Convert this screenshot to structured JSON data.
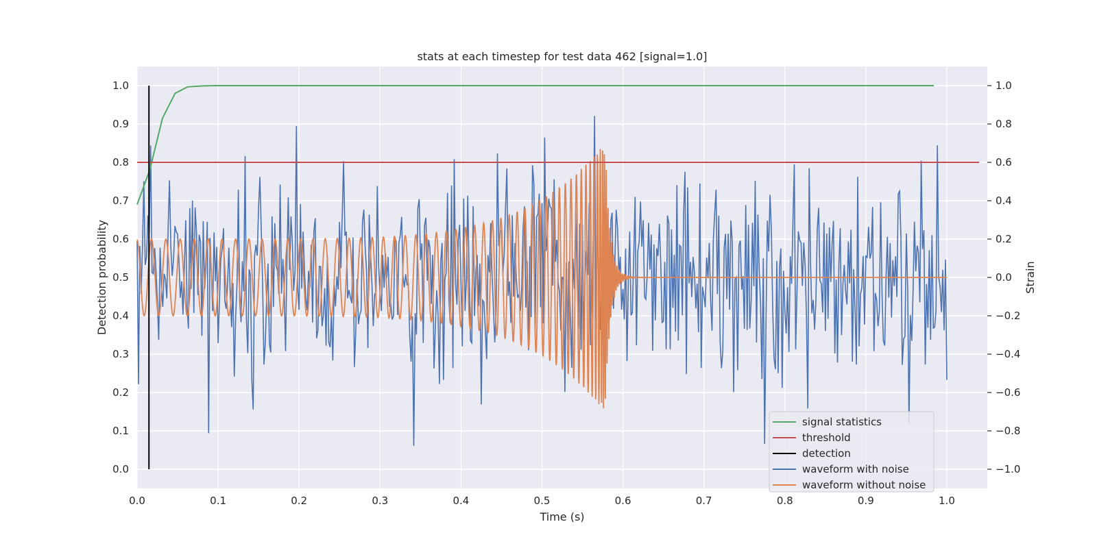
{
  "chart_data": {
    "type": "line",
    "title": "stats at each timestep for test data 462 [signal=1.0]",
    "xlabel": "Time (s)",
    "ylabel": "Detection probability",
    "y2label": "Strain",
    "xlim": [
      0.0,
      1.05
    ],
    "ylim": [
      -0.05,
      1.05
    ],
    "y2lim": [
      -1.1,
      1.1
    ],
    "xticks": [
      "0.0",
      "0.1",
      "0.2",
      "0.3",
      "0.4",
      "0.5",
      "0.6",
      "0.7",
      "0.8",
      "0.9",
      "1.0"
    ],
    "yticks": [
      "0.0",
      "0.1",
      "0.2",
      "0.3",
      "0.4",
      "0.5",
      "0.6",
      "0.7",
      "0.8",
      "0.9",
      "1.0"
    ],
    "y2ticks": [
      "−1.0",
      "−0.8",
      "−0.6",
      "−0.4",
      "−0.2",
      "0.0",
      "0.2",
      "0.4",
      "0.6",
      "0.8",
      "1.0"
    ],
    "grid": true,
    "legend_position": "lower-right",
    "colors": {
      "signal": "#55a868",
      "threshold": "#c44e52",
      "detection": "#000000",
      "noisy": "#4c72b0",
      "clean": "#dd8452",
      "background": "#eaeaf2",
      "grid": "#ffffff"
    },
    "series": [
      {
        "name": "signal statistics",
        "axis": "left",
        "x": [
          0.0,
          0.0156,
          0.0313,
          0.0469,
          0.0625,
          0.0781,
          0.0938,
          0.125,
          0.25,
          0.5,
          0.75,
          0.984
        ],
        "values": [
          0.69,
          0.78,
          0.915,
          0.98,
          0.997,
          0.999,
          1.0,
          1.0,
          1.0,
          1.0,
          1.0,
          1.0
        ]
      },
      {
        "name": "threshold",
        "axis": "left",
        "x": [
          0.0,
          1.04
        ],
        "values": [
          0.8,
          0.8
        ]
      },
      {
        "name": "detection",
        "axis": "left",
        "x": [
          0.0146,
          0.0146
        ],
        "values": [
          0.0,
          1.0
        ]
      },
      {
        "name": "waveform with noise",
        "axis": "right",
        "x_start": 0.0,
        "x_end": 1.0,
        "samples": 600,
        "amplitude": 0.28,
        "description": "white noise, strain mostly within ±0.6 with peaks near ±1.0"
      },
      {
        "name": "waveform without noise",
        "axis": "right",
        "x_start": 0.0,
        "x_end": 1.0,
        "merger_time": 0.578,
        "amplitude_start": 0.2,
        "amplitude_peak": 0.7,
        "description": "chirp: oscillation frequency and amplitude increase until merger near 0.578 s, then ringdown to 0"
      }
    ]
  }
}
